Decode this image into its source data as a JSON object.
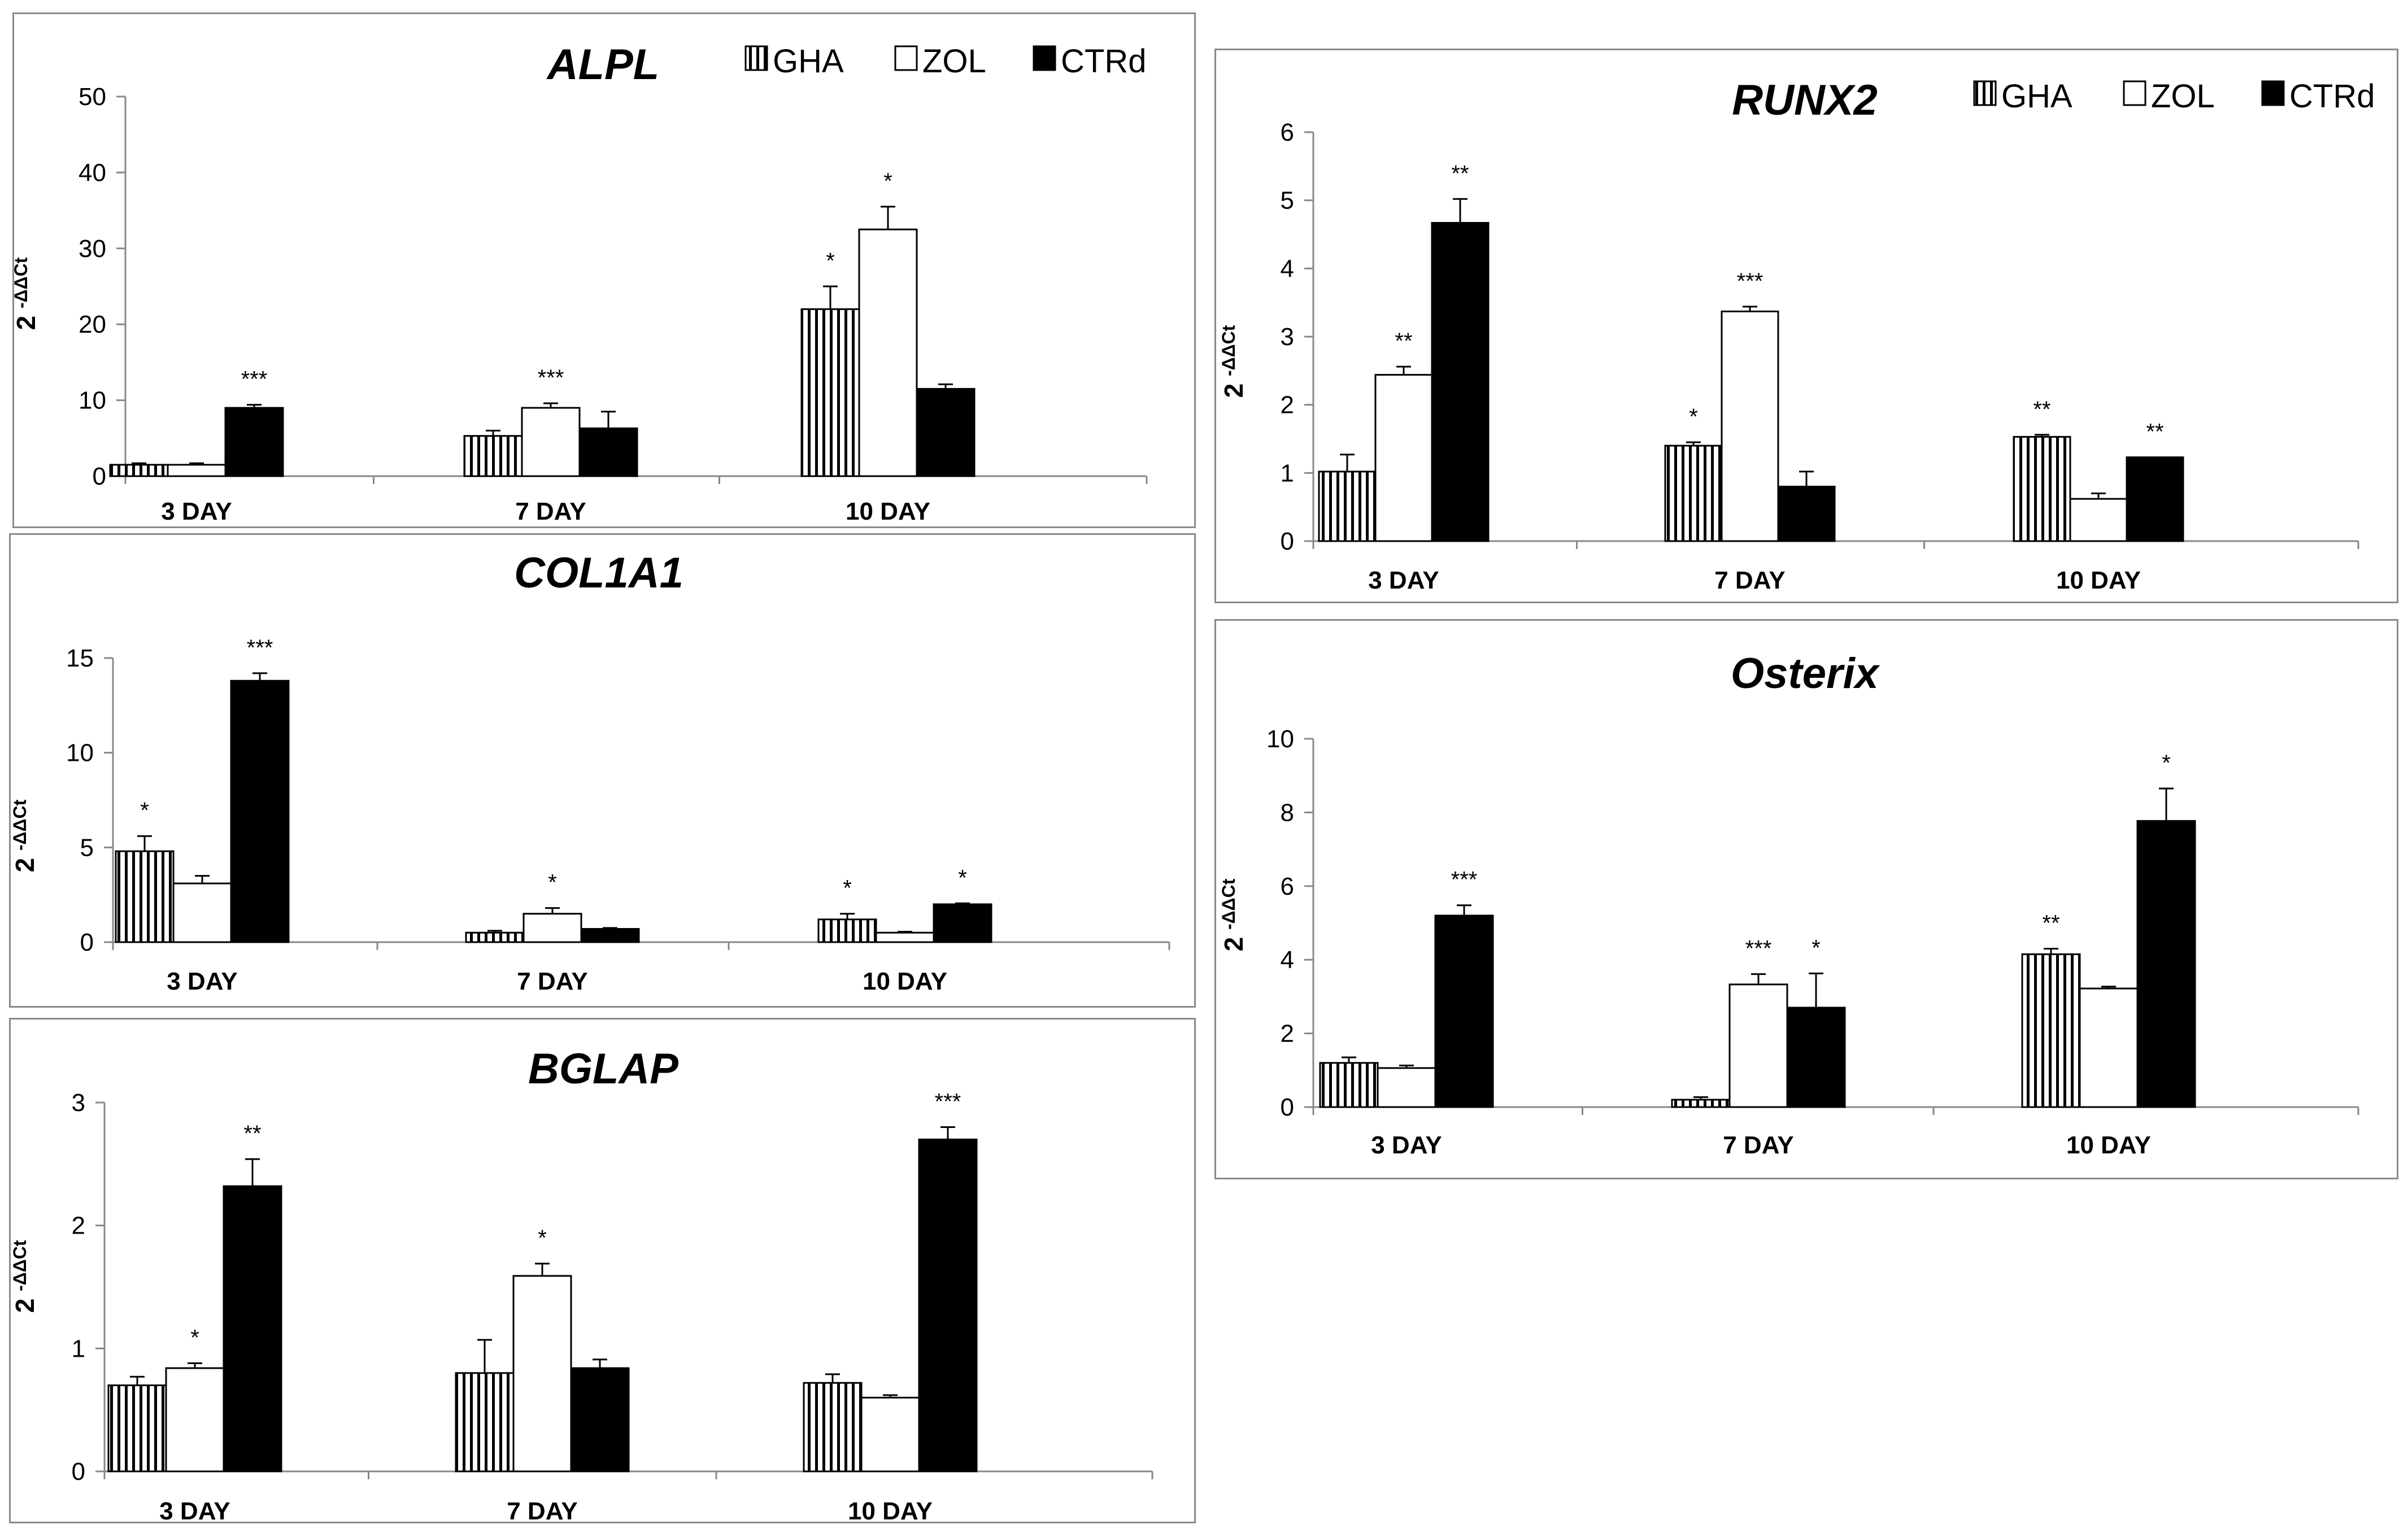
{
  "legend": [
    {
      "name": "GHA",
      "pattern": "stripes"
    },
    {
      "name": "ZOL",
      "pattern": "white"
    },
    {
      "name": "CTRd",
      "pattern": "black"
    }
  ],
  "colors": {
    "axis": "#888888",
    "bar_fill_dark": "#000000",
    "bar_fill_light": "#ffffff",
    "panel_border": "#8a8a8a"
  },
  "chart_data": [
    {
      "id": "alpl",
      "type": "bar",
      "title": "ALPL",
      "ylabel_main": "2",
      "ylabel_sup": "-ΔΔCt",
      "categories": [
        "3 DAY",
        "7 DAY",
        "10 DAY"
      ],
      "ylim": [
        0,
        50
      ],
      "yticks": [
        0,
        10,
        20,
        30,
        40,
        50
      ],
      "show_legend": true,
      "series": [
        {
          "name": "GHA",
          "values": [
            1.5,
            5.3,
            22.0
          ],
          "errors": [
            0.2,
            0.7,
            3.0
          ],
          "sig": [
            "",
            "",
            "*"
          ]
        },
        {
          "name": "ZOL",
          "values": [
            1.5,
            9.0,
            32.5
          ],
          "errors": [
            0.2,
            0.6,
            3.0
          ],
          "sig": [
            "",
            "***",
            "*"
          ]
        },
        {
          "name": "CTRd",
          "values": [
            9.0,
            6.3,
            11.5
          ],
          "errors": [
            0.4,
            2.2,
            0.6
          ],
          "sig": [
            "***",
            "",
            ""
          ]
        }
      ]
    },
    {
      "id": "col1a1",
      "type": "bar",
      "title": "COL1A1",
      "ylabel_main": "2",
      "ylabel_sup": "-ΔΔCt",
      "categories": [
        "3 DAY",
        "7 DAY",
        "10 DAY"
      ],
      "ylim": [
        0,
        15
      ],
      "yticks": [
        0,
        5,
        10,
        15
      ],
      "show_legend": false,
      "series": [
        {
          "name": "GHA",
          "values": [
            4.8,
            0.5,
            1.2
          ],
          "errors": [
            0.8,
            0.1,
            0.3
          ],
          "sig": [
            "*",
            "",
            "*"
          ]
        },
        {
          "name": "ZOL",
          "values": [
            3.1,
            1.5,
            0.5
          ],
          "errors": [
            0.4,
            0.3,
            0.05
          ],
          "sig": [
            "",
            "*",
            ""
          ]
        },
        {
          "name": "CTRd",
          "values": [
            13.8,
            0.7,
            2.0
          ],
          "errors": [
            0.4,
            0.05,
            0.05
          ],
          "sig": [
            "***",
            "",
            "*"
          ]
        }
      ]
    },
    {
      "id": "bglap",
      "type": "bar",
      "title": "BGLAP",
      "ylabel_main": "2",
      "ylabel_sup": "-ΔΔCt",
      "categories": [
        "3 DAY",
        "7 DAY",
        "10 DAY"
      ],
      "ylim": [
        0,
        3
      ],
      "yticks": [
        0,
        1,
        2,
        3
      ],
      "show_legend": false,
      "series": [
        {
          "name": "GHA",
          "values": [
            0.7,
            0.8,
            0.72
          ],
          "errors": [
            0.07,
            0.27,
            0.07
          ],
          "sig": [
            "",
            "",
            ""
          ]
        },
        {
          "name": "ZOL",
          "values": [
            0.84,
            1.59,
            0.6
          ],
          "errors": [
            0.04,
            0.1,
            0.02
          ],
          "sig": [
            "*",
            "*",
            ""
          ]
        },
        {
          "name": "CTRd",
          "values": [
            2.32,
            0.84,
            2.7
          ],
          "errors": [
            0.22,
            0.07,
            0.1
          ],
          "sig": [
            "**",
            "",
            "***"
          ]
        }
      ]
    },
    {
      "id": "runx2",
      "type": "bar",
      "title": "RUNX2",
      "ylabel_main": "2",
      "ylabel_sup": "-ΔΔCt",
      "categories": [
        "3 DAY",
        "7 DAY",
        "10 DAY"
      ],
      "ylim": [
        0,
        6
      ],
      "yticks": [
        0,
        1,
        2,
        3,
        4,
        5,
        6
      ],
      "show_legend": true,
      "series": [
        {
          "name": "GHA",
          "values": [
            1.02,
            1.4,
            1.53
          ],
          "errors": [
            0.25,
            0.05,
            0.03
          ],
          "sig": [
            "",
            "*",
            "**"
          ]
        },
        {
          "name": "ZOL",
          "values": [
            2.44,
            3.37,
            0.62
          ],
          "errors": [
            0.12,
            0.07,
            0.08
          ],
          "sig": [
            "**",
            "***",
            ""
          ]
        },
        {
          "name": "CTRd",
          "values": [
            4.67,
            0.8,
            1.23
          ],
          "errors": [
            0.35,
            0.22,
            0.0
          ],
          "sig": [
            "**",
            "",
            "**"
          ]
        }
      ]
    },
    {
      "id": "osterix",
      "type": "bar",
      "title": "Osterix",
      "ylabel_main": "2",
      "ylabel_sup": "-ΔΔCt",
      "categories": [
        "3 DAY",
        "7 DAY",
        "10 DAY"
      ],
      "ylim": [
        0,
        10
      ],
      "yticks": [
        0,
        2,
        4,
        6,
        8,
        10
      ],
      "show_legend": false,
      "series": [
        {
          "name": "GHA",
          "values": [
            1.2,
            0.2,
            4.15
          ],
          "errors": [
            0.15,
            0.07,
            0.15
          ],
          "sig": [
            "",
            "",
            "**"
          ]
        },
        {
          "name": "ZOL",
          "values": [
            1.06,
            3.33,
            3.22
          ],
          "errors": [
            0.07,
            0.28,
            0.05
          ],
          "sig": [
            "",
            "***",
            ""
          ]
        },
        {
          "name": "CTRd",
          "values": [
            5.2,
            2.7,
            7.77
          ],
          "errors": [
            0.28,
            0.93,
            0.88
          ],
          "sig": [
            "***",
            "*",
            "*"
          ]
        }
      ]
    }
  ]
}
